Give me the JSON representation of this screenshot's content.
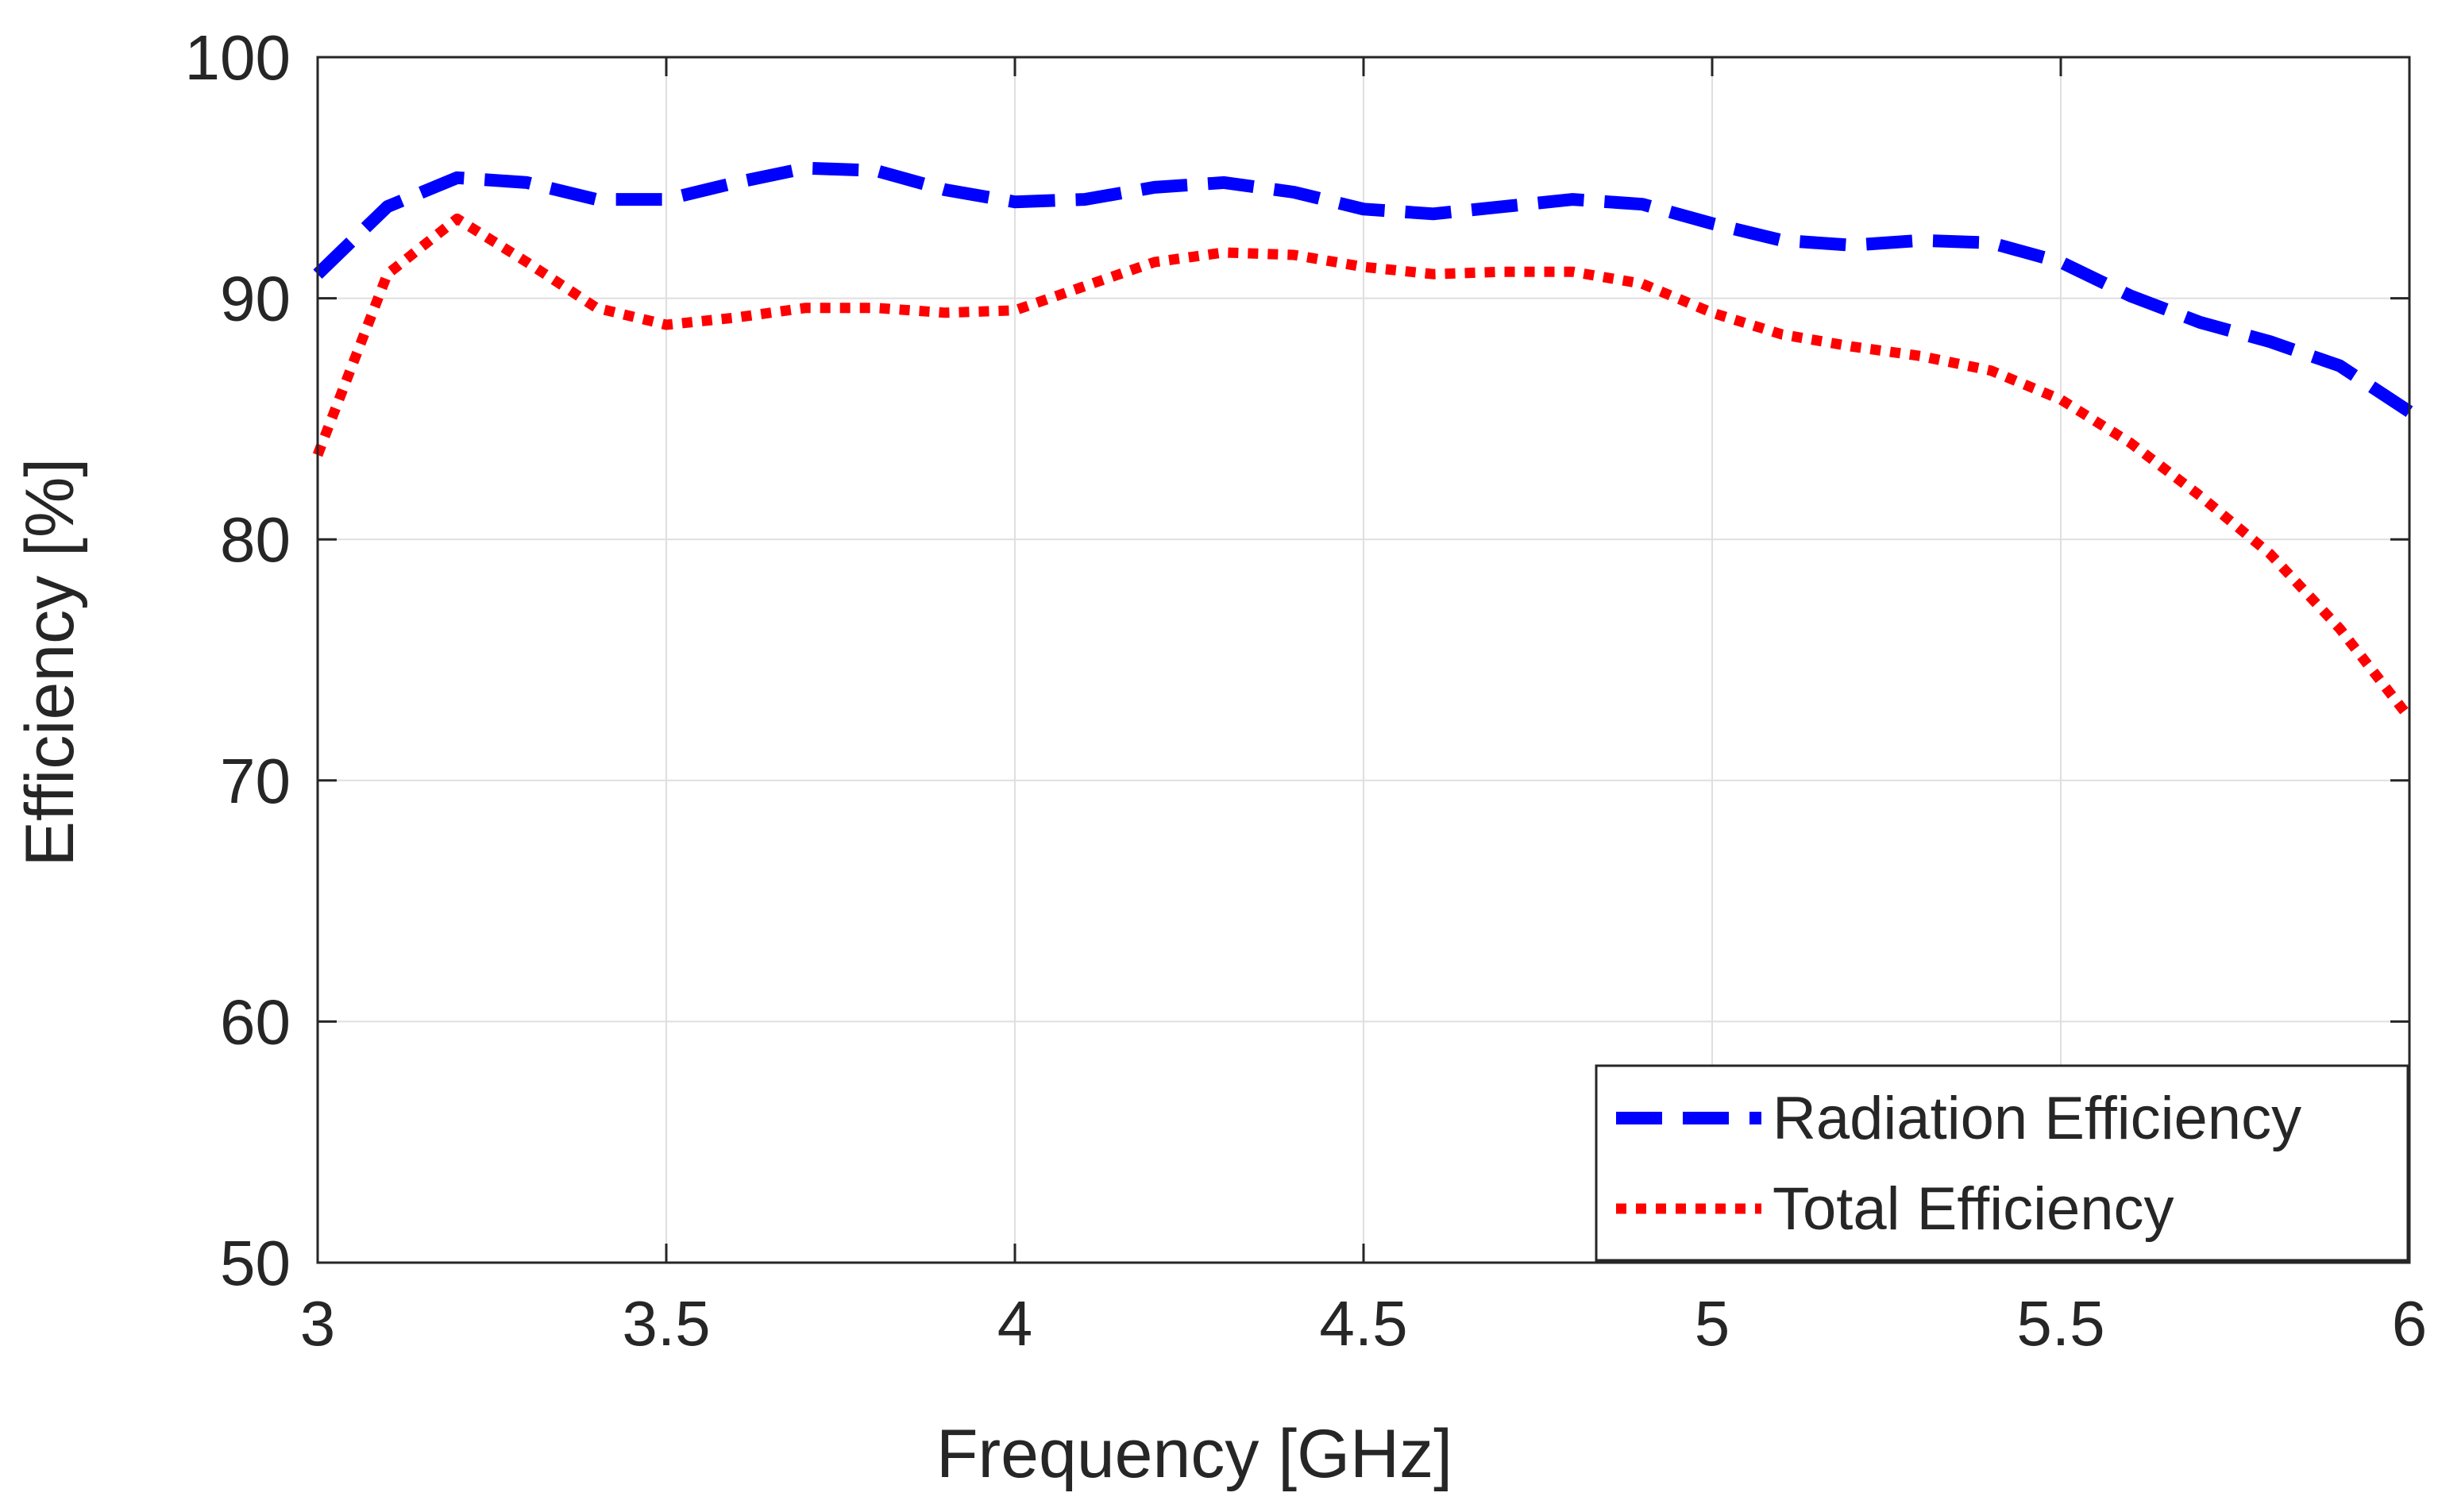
{
  "chart_data": {
    "type": "line",
    "title": "",
    "xlabel": "Frequency [GHz]",
    "ylabel": "Efficiency [%]",
    "xlim": [
      3,
      6
    ],
    "ylim": [
      50,
      100
    ],
    "xticks": [
      3,
      3.5,
      4,
      4.5,
      5,
      5.5,
      6
    ],
    "yticks": [
      50,
      60,
      70,
      80,
      90,
      100
    ],
    "xtick_labels": [
      "3",
      "3.5",
      "4",
      "4.5",
      "5",
      "5.5",
      "6"
    ],
    "ytick_labels": [
      "50",
      "60",
      "70",
      "80",
      "90",
      "100"
    ],
    "grid": true,
    "legend_position": "bottom-right",
    "series": [
      {
        "name": "Radiation Efficiency",
        "color": "#0000ff",
        "style": "dashed",
        "x": [
          3.0,
          3.1,
          3.2,
          3.3,
          3.4,
          3.5,
          3.6,
          3.7,
          3.8,
          3.9,
          4.0,
          4.1,
          4.2,
          4.3,
          4.4,
          4.5,
          4.6,
          4.7,
          4.8,
          4.9,
          5.0,
          5.1,
          5.2,
          5.3,
          5.4,
          5.5,
          5.6,
          5.7,
          5.8,
          5.9,
          6.0
        ],
        "values": [
          91.0,
          93.8,
          95.0,
          94.8,
          94.1,
          94.1,
          94.8,
          95.4,
          95.3,
          94.5,
          94.0,
          94.1,
          94.6,
          94.8,
          94.4,
          93.7,
          93.5,
          93.8,
          94.1,
          93.9,
          93.1,
          92.4,
          92.2,
          92.4,
          92.3,
          91.5,
          90.1,
          89.0,
          88.2,
          87.2,
          85.3
        ]
      },
      {
        "name": "Total Efficiency",
        "color": "#ff0000",
        "style": "dotted",
        "x": [
          3.0,
          3.1,
          3.2,
          3.3,
          3.4,
          3.5,
          3.6,
          3.7,
          3.8,
          3.9,
          4.0,
          4.1,
          4.2,
          4.3,
          4.4,
          4.5,
          4.6,
          4.7,
          4.8,
          4.9,
          5.0,
          5.1,
          5.2,
          5.3,
          5.4,
          5.5,
          5.6,
          5.7,
          5.8,
          5.9,
          6.0
        ],
        "values": [
          83.5,
          91.0,
          93.3,
          91.5,
          89.6,
          88.9,
          89.2,
          89.6,
          89.6,
          89.4,
          89.5,
          90.5,
          91.5,
          91.9,
          91.8,
          91.3,
          91.0,
          91.1,
          91.1,
          90.6,
          89.4,
          88.5,
          88.0,
          87.6,
          87.0,
          85.8,
          84.0,
          81.8,
          79.4,
          76.3,
          72.6
        ]
      }
    ]
  }
}
